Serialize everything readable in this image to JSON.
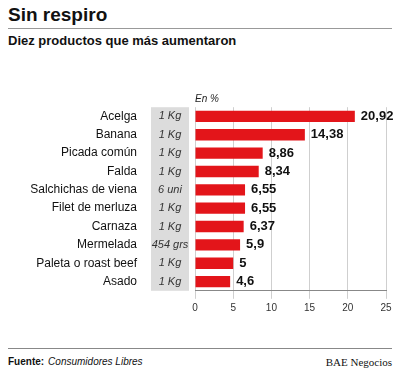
{
  "chart_data": {
    "type": "bar",
    "orientation": "horizontal",
    "title": "Sin respiro",
    "subtitle": "Diez productos que más aumentaron",
    "xlabel": "En %",
    "categories": [
      "Acelga",
      "Banana",
      "Picada común",
      "Falda",
      "Salchichas de viena",
      "Filet de merluza",
      "Carnaza",
      "Mermelada",
      "Paleta o roast beef",
      "Asado"
    ],
    "units": [
      "1 Kg",
      "1 Kg",
      "1 Kg",
      "1 Kg",
      "6 uni",
      "1 Kg",
      "1 Kg",
      "454 grs",
      "1 Kg",
      "1 Kg"
    ],
    "values": [
      20.92,
      14.38,
      8.86,
      8.34,
      6.55,
      6.55,
      6.37,
      5.9,
      5,
      4.6
    ],
    "value_labels": [
      "20,92",
      "14,38",
      "8,86",
      "8,34",
      "6,55",
      "6,55",
      "6,37",
      "5,9",
      "5",
      "4,6"
    ],
    "color": "#e3151a",
    "xlim": [
      0,
      25
    ],
    "xticks": [
      0,
      5,
      10,
      15,
      20,
      25
    ],
    "grid": true,
    "data_labels": true,
    "source_label": "Fuente:",
    "source": "Consumidores Libres",
    "credit": "BAE Negocios"
  }
}
